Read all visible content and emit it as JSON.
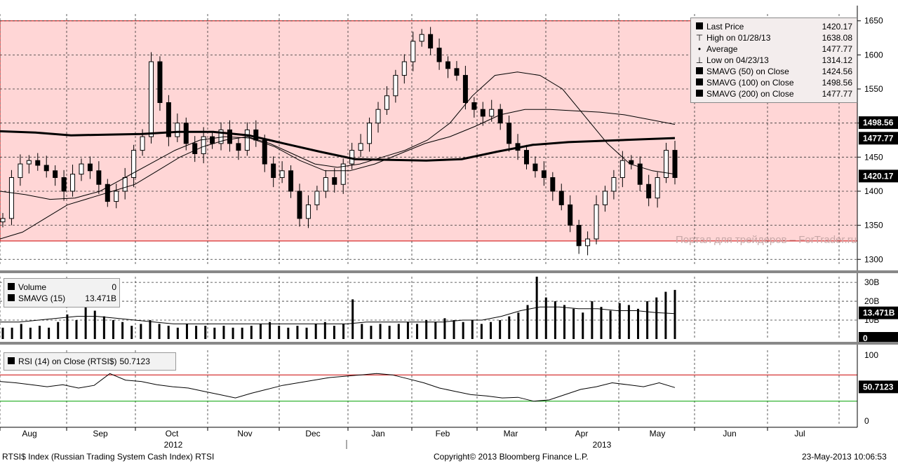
{
  "title": "RTSI$ Index (Russian Trading System Cash Index) RTSI",
  "copyright": "Copyright© 2013 Bloomberg Finance L.P.",
  "timestamp": "23-May-2013 10:06:53",
  "watermark": "Портал для трейдеров – ForTrader.ru",
  "colors": {
    "band": "#ffd6d6",
    "overbought": "#cc0000",
    "oversold": "#00a000",
    "tag_bg": "#000000"
  },
  "price_legend": [
    {
      "icon": "square-icon",
      "name": "Last Price",
      "value": "1420.17"
    },
    {
      "icon": "high-marker-icon",
      "name": "High on 01/28/13",
      "value": "1638.08"
    },
    {
      "icon": "average-marker-icon",
      "name": "Average",
      "value": "1477.77"
    },
    {
      "icon": "low-marker-icon",
      "name": "Low on 04/23/13",
      "value": "1314.12"
    },
    {
      "icon": "square-icon",
      "name": "SMAVG (50) on Close",
      "value": "1424.56"
    },
    {
      "icon": "square-icon",
      "name": "SMAVG (100) on Close",
      "value": "1498.56"
    },
    {
      "icon": "square-icon",
      "name": "SMAVG (200) on Close",
      "value": "1477.77"
    }
  ],
  "price_tags": [
    "1498.56",
    "1477.77",
    "1420.17"
  ],
  "volume_legend": [
    {
      "icon": "square-icon",
      "name": "Volume",
      "value": "0"
    },
    {
      "icon": "square-icon",
      "name": "SMAVG (15)",
      "value": "13.471B"
    }
  ],
  "volume_tags": [
    "13.471B",
    "0"
  ],
  "rsi_legend": {
    "name": "RSI (14) on Close (RTSI$)",
    "value": "50.7123"
  },
  "rsi_tag": "50.7123",
  "chart_data": [
    {
      "type": "candlestick",
      "y_ticks": [
        "1650",
        "1600",
        "1550",
        "1500",
        "1450",
        "1400",
        "1350",
        "1300"
      ],
      "ylim": [
        1290,
        1660
      ],
      "band": [
        1327,
        1650
      ],
      "x_months": [
        "Aug",
        "Sep",
        "Oct",
        "Nov",
        "Dec",
        "Jan",
        "Feb",
        "Mar",
        "Apr",
        "May",
        "Jun",
        "Jul"
      ],
      "x_years": [
        "2012",
        "2013"
      ],
      "grid": true,
      "closes": [
        1360,
        1420,
        1440,
        1445,
        1438,
        1430,
        1420,
        1400,
        1425,
        1440,
        1430,
        1410,
        1385,
        1400,
        1420,
        1460,
        1480,
        1590,
        1530,
        1480,
        1500,
        1470,
        1455,
        1480,
        1470,
        1490,
        1470,
        1460,
        1490,
        1475,
        1440,
        1420,
        1430,
        1400,
        1360,
        1380,
        1400,
        1420,
        1410,
        1440,
        1460,
        1470,
        1500,
        1520,
        1540,
        1570,
        1590,
        1620,
        1630,
        1610,
        1590,
        1580,
        1570,
        1530,
        1520,
        1510,
        1520,
        1500,
        1470,
        1460,
        1440,
        1430,
        1420,
        1400,
        1380,
        1350,
        1320,
        1330,
        1380,
        1400,
        1420,
        1445,
        1440,
        1410,
        1390,
        1420,
        1460,
        1420
      ],
      "sma50": [
        1330,
        1340,
        1360,
        1380,
        1390,
        1400,
        1410,
        1430,
        1450,
        1465,
        1475,
        1480,
        1470,
        1455,
        1440,
        1435,
        1440,
        1450,
        1460,
        1475,
        1500,
        1540,
        1570,
        1575,
        1570,
        1550,
        1510,
        1470,
        1440,
        1430,
        1425
      ],
      "sma100": [
        1400,
        1395,
        1388,
        1390,
        1400,
        1420,
        1440,
        1460,
        1475,
        1480,
        1478,
        1465,
        1445,
        1430,
        1430,
        1440,
        1455,
        1470,
        1480,
        1495,
        1512,
        1520,
        1520,
        1518,
        1516,
        1512,
        1505,
        1498
      ],
      "sma200": [
        1488,
        1486,
        1482,
        1483,
        1484,
        1487,
        1487,
        1482,
        1470,
        1458,
        1447,
        1446,
        1445,
        1447,
        1458,
        1468,
        1472,
        1474,
        1476,
        1478
      ],
      "series_names": [
        "Last Price",
        "SMAVG (50) on Close",
        "SMAVG (100) on Close",
        "SMAVG (200) on Close"
      ]
    },
    {
      "type": "bar",
      "y_ticks": [
        "30B",
        "20B",
        "10B"
      ],
      "ylim": [
        0,
        33
      ],
      "volumes_B": [
        6,
        6,
        8,
        6,
        7,
        6,
        9,
        13,
        10,
        18,
        15,
        12,
        10,
        9,
        7,
        8,
        10,
        8,
        7,
        6,
        8,
        7,
        7,
        6,
        7,
        6,
        6,
        7,
        8,
        9,
        7,
        6,
        7,
        6,
        8,
        9,
        7,
        8,
        21,
        8,
        7,
        8,
        7,
        8,
        9,
        8,
        10,
        9,
        11,
        10,
        9,
        10,
        8,
        9,
        10,
        12,
        14,
        18,
        33,
        22,
        20,
        18,
        16,
        14,
        20,
        17,
        15,
        19,
        18,
        16,
        20,
        22,
        25,
        26
      ],
      "sma15_B": [
        9,
        9,
        10,
        11,
        12,
        12,
        11,
        10,
        9,
        8,
        8,
        8,
        8,
        8,
        8,
        8,
        8,
        8,
        8,
        9,
        9,
        9,
        9,
        9,
        10,
        10,
        12,
        15,
        17,
        17,
        16,
        16,
        15,
        15,
        14,
        13.471
      ]
    },
    {
      "type": "line",
      "y_ticks": [
        "100",
        "50",
        "0"
      ],
      "ylim": [
        0,
        100
      ],
      "overbought": 70,
      "oversold": 30,
      "rsi": [
        60,
        58,
        55,
        52,
        55,
        50,
        54,
        72,
        62,
        60,
        55,
        52,
        50,
        45,
        40,
        35,
        42,
        48,
        54,
        58,
        62,
        66,
        68,
        70,
        72,
        70,
        64,
        58,
        50,
        45,
        40,
        38,
        35,
        36,
        30,
        32,
        40,
        48,
        52,
        58,
        55,
        52,
        58,
        50.7123
      ]
    }
  ]
}
